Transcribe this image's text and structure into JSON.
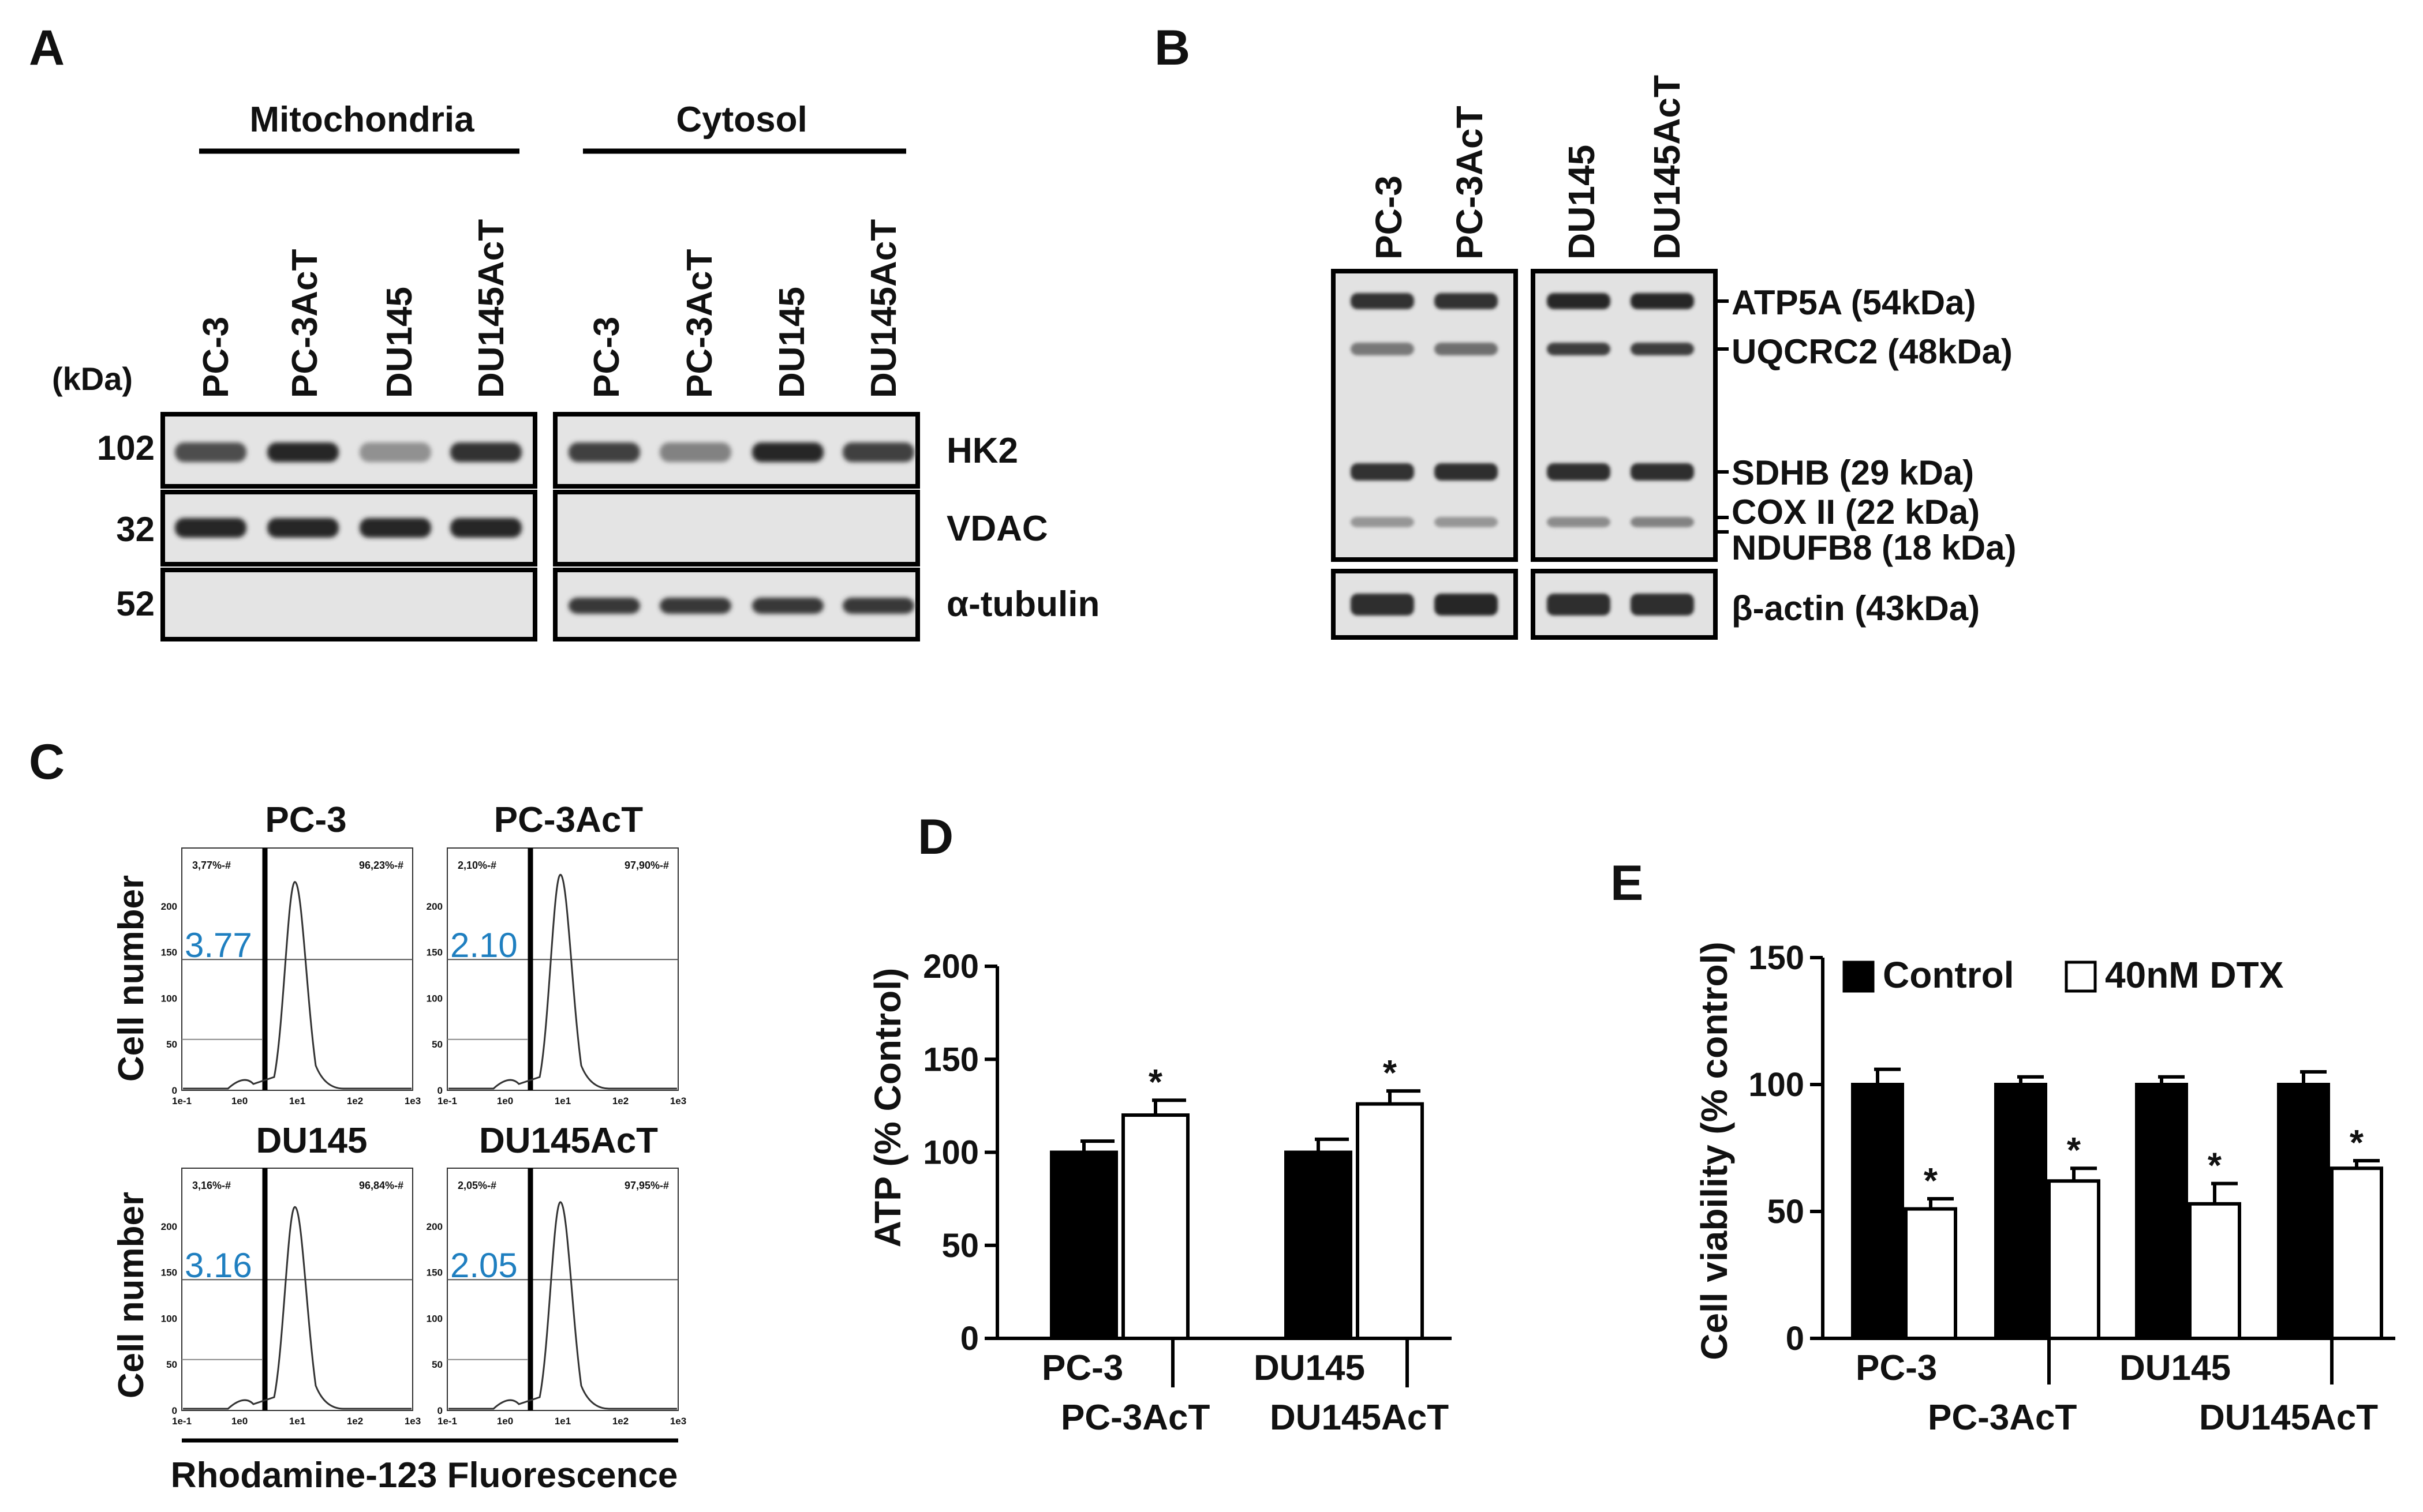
{
  "panel_letters": {
    "a": "A",
    "b": "B",
    "c": "C",
    "d": "D",
    "e": "E"
  },
  "panel_a": {
    "group_mito": "Mitochondria",
    "group_cyto": "Cytosol",
    "kda_label": "(kDa)",
    "lanes": [
      "PC-3",
      "PC-3AcT",
      "DU145",
      "DU145AcT",
      "PC-3",
      "PC-3AcT",
      "DU145",
      "DU145AcT"
    ],
    "markers": [
      "102",
      "32",
      "52"
    ],
    "proteins": [
      "HK2",
      "VDAC",
      "α-tubulin"
    ],
    "band_intensity": {
      "HK2": [
        0.75,
        1.0,
        0.3,
        0.95,
        0.85,
        0.4,
        1.0,
        0.85
      ],
      "VDAC": [
        1.0,
        1.0,
        1.0,
        1.0,
        0,
        0,
        0,
        0
      ],
      "alpha_tubulin": [
        0,
        0,
        0,
        0,
        0.9,
        0.9,
        0.9,
        0.9
      ]
    }
  },
  "panel_b": {
    "lanes": [
      "PC-3",
      "PC-3AcT",
      "DU145",
      "DU145AcT"
    ],
    "proteins": [
      "ATP5A (54kDa)",
      "UQCRC2 (48kDa)",
      "SDHB (29 kDa)",
      "COX II (22 kDa)",
      "NDUFB8 (18 kDa)",
      "β-actin (43kDa)"
    ]
  },
  "panel_c": {
    "titles": [
      "PC-3",
      "PC-3AcT",
      "DU145",
      "DU145AcT"
    ],
    "values": [
      "3.77",
      "2.10",
      "3.16",
      "2.05"
    ],
    "gate_left": [
      "3,77%-#",
      "2,10%-#",
      "3,16%-#",
      "2,05%-#"
    ],
    "gate_right": [
      "96,23%-#",
      "97,90%-#",
      "96,84%-#",
      "97,95%-#"
    ],
    "xticks": [
      "1e-1",
      "1e0",
      "1e1",
      "1e2",
      "1e3"
    ],
    "yticks": [
      "0",
      "50",
      "100",
      "150",
      "200"
    ],
    "ylabel": "Cell number",
    "xlabel": "Rhodamine-123 Fluorescence",
    "value_color": "#1f7fc0"
  },
  "chart_data": [
    {
      "type": "bar",
      "categories": [
        "PC-3",
        "PC-3AcT",
        "DU145",
        "DU145AcT"
      ],
      "values": [
        100,
        120,
        100,
        126
      ],
      "errors": [
        6,
        8,
        7,
        7
      ],
      "colors": [
        "#000000",
        "#ffffff",
        "#000000",
        "#ffffff"
      ],
      "significance": [
        "",
        "*",
        "",
        "*"
      ],
      "ylabel": "ATP (% Control)",
      "ylim": [
        0,
        200
      ],
      "yticks": [
        "0",
        "50",
        "100",
        "150",
        "200"
      ]
    },
    {
      "type": "bar",
      "categories": [
        "PC-3",
        "PC-3AcT",
        "DU145",
        "DU145AcT"
      ],
      "series": [
        {
          "name": "Control",
          "values": [
            100,
            100,
            100,
            100
          ],
          "errors": [
            6,
            3,
            3,
            5
          ],
          "color": "#000000",
          "significance": [
            "",
            "",
            "",
            ""
          ]
        },
        {
          "name": "40nM DTX",
          "values": [
            51,
            62,
            53,
            67
          ],
          "errors": [
            4,
            5,
            8,
            3
          ],
          "color": "#ffffff",
          "significance": [
            "*",
            "*",
            "*",
            "*"
          ]
        }
      ],
      "ylabel": "Cell viability (% control)",
      "ylim": [
        0,
        150
      ],
      "yticks": [
        "0",
        "50",
        "100",
        "150"
      ],
      "legend": "top"
    }
  ]
}
